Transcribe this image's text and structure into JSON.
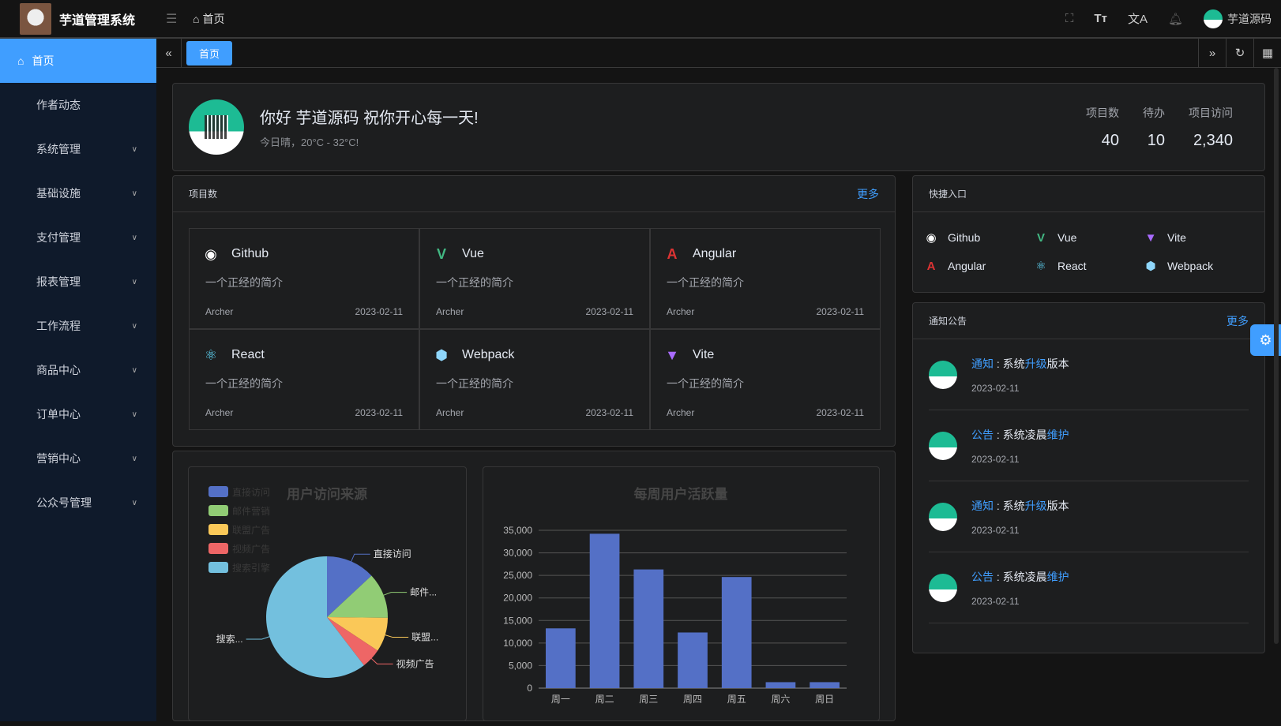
{
  "header": {
    "app_title": "芋道管理系统",
    "breadcrumb": "首页",
    "user_name": "芋道源码",
    "icons": [
      "fullscreen-icon",
      "font-size-icon",
      "translate-icon",
      "bell-icon"
    ]
  },
  "sidebar": {
    "items": [
      {
        "label": "首页",
        "active": true
      },
      {
        "label": "作者动态"
      },
      {
        "label": "系统管理",
        "expandable": true
      },
      {
        "label": "基础设施",
        "expandable": true
      },
      {
        "label": "支付管理",
        "expandable": true
      },
      {
        "label": "报表管理",
        "expandable": true
      },
      {
        "label": "工作流程",
        "expandable": true
      },
      {
        "label": "商品中心",
        "expandable": true
      },
      {
        "label": "订单中心",
        "expandable": true
      },
      {
        "label": "营销中心",
        "expandable": true
      },
      {
        "label": "公众号管理",
        "expandable": true
      }
    ]
  },
  "tabs": {
    "items": [
      {
        "label": "首页"
      }
    ]
  },
  "welcome": {
    "greeting": "你好 芋道源码 祝你开心每一天!",
    "weather": "今日晴，20°C - 32°C!",
    "stats": [
      {
        "label": "项目数",
        "value": "40"
      },
      {
        "label": "待办",
        "value": "10"
      },
      {
        "label": "项目访问",
        "value": "2,340"
      }
    ]
  },
  "projects": {
    "title": "项目数",
    "more": "更多",
    "items": [
      {
        "name": "Github",
        "desc": "一个正经的简介",
        "author": "Archer",
        "date": "2023-02-11",
        "icon": "github-icon",
        "color": "#ffffff"
      },
      {
        "name": "Vue",
        "desc": "一个正经的简介",
        "author": "Archer",
        "date": "2023-02-11",
        "icon": "vue-icon",
        "color": "#42b883"
      },
      {
        "name": "Angular",
        "desc": "一个正经的简介",
        "author": "Archer",
        "date": "2023-02-11",
        "icon": "angular-icon",
        "color": "#dd3333"
      },
      {
        "name": "React",
        "desc": "一个正经的简介",
        "author": "Archer",
        "date": "2023-02-11",
        "icon": "react-icon",
        "color": "#61dafb"
      },
      {
        "name": "Webpack",
        "desc": "一个正经的简介",
        "author": "Archer",
        "date": "2023-02-11",
        "icon": "webpack-icon",
        "color": "#8ed6fb"
      },
      {
        "name": "Vite",
        "desc": "一个正经的简介",
        "author": "Archer",
        "date": "2023-02-11",
        "icon": "vite-icon",
        "color": "#a96bff"
      }
    ]
  },
  "shortcuts": {
    "title": "快捷入口",
    "items": [
      {
        "name": "Github",
        "icon": "github-icon",
        "color": "#ffffff"
      },
      {
        "name": "Vue",
        "icon": "vue-icon",
        "color": "#42b883"
      },
      {
        "name": "Vite",
        "icon": "vite-icon",
        "color": "#a96bff"
      },
      {
        "name": "Angular",
        "icon": "angular-icon",
        "color": "#dd3333"
      },
      {
        "name": "React",
        "icon": "react-icon",
        "color": "#61dafb"
      },
      {
        "name": "Webpack",
        "icon": "webpack-icon",
        "color": "#8ed6fb"
      }
    ]
  },
  "notices": {
    "title": "通知公告",
    "more": "更多",
    "items": [
      {
        "type": "通知",
        "pre": "系统",
        "hl": "升级",
        "post": "版本",
        "date": "2023-02-11"
      },
      {
        "type": "公告",
        "pre": "系统凌晨",
        "hl": "维护",
        "post": "",
        "date": "2023-02-11"
      },
      {
        "type": "通知",
        "pre": "系统",
        "hl": "升级",
        "post": "版本",
        "date": "2023-02-11"
      },
      {
        "type": "公告",
        "pre": "系统凌晨",
        "hl": "维护",
        "post": "",
        "date": "2023-02-11"
      }
    ]
  },
  "chart_data": [
    {
      "type": "pie",
      "title": "用户访问来源",
      "legend_position": "top-left",
      "categories": [
        "直接访问",
        "邮件营销",
        "联盟广告",
        "视频广告",
        "搜索引擎"
      ],
      "values": [
        335,
        310,
        234,
        135,
        1548
      ],
      "slice_labels": [
        "直接访问",
        "邮件...",
        "联盟...",
        "视频广告",
        "搜索..."
      ],
      "colors": [
        "#5470c6",
        "#91cc75",
        "#fac858",
        "#ee6666",
        "#73c0de"
      ]
    },
    {
      "type": "bar",
      "title": "每周用户活跃量",
      "categories": [
        "周一",
        "周二",
        "周三",
        "周四",
        "周五",
        "周六",
        "周日"
      ],
      "values": [
        13253,
        34235,
        26321,
        12340,
        24643,
        1322,
        1324
      ],
      "ylim": [
        0,
        35000
      ],
      "yticks": [
        "0",
        "5,000",
        "10,000",
        "15,000",
        "20,000",
        "25,000",
        "30,000",
        "35,000"
      ],
      "grid": true,
      "color": "#5470c6"
    }
  ],
  "colors": {
    "accent": "#409eff",
    "sidebar_bg": "#0f1a2b"
  }
}
